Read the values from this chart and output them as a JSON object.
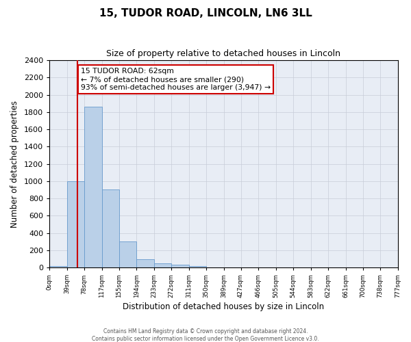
{
  "title_line1": "15, TUDOR ROAD, LINCOLN, LN6 3LL",
  "title_line2": "Size of property relative to detached houses in Lincoln",
  "xlabel": "Distribution of detached houses by size in Lincoln",
  "ylabel": "Number of detached properties",
  "bar_color": "#bad0e8",
  "bar_edge_color": "#6699cc",
  "bg_color": "#e8edf5",
  "grid_color": "#c8cdd8",
  "annotation_box_color": "#cc0000",
  "annotation_line1": "15 TUDOR ROAD: 62sqm",
  "annotation_line2": "← 7% of detached houses are smaller (290)",
  "annotation_line3": "93% of semi-detached houses are larger (3,947) →",
  "red_line_x": 62,
  "xlim_left": 0,
  "xlim_right": 777,
  "ylim_top": 2400,
  "ylim_bottom": 0,
  "bin_edges": [
    0,
    39,
    78,
    117,
    155,
    194,
    233,
    272,
    311,
    350,
    389,
    427,
    466,
    505,
    544,
    583,
    622,
    661,
    700,
    738,
    777
  ],
  "bar_heights": [
    20,
    1000,
    1860,
    900,
    300,
    100,
    45,
    30,
    20,
    0,
    0,
    0,
    0,
    0,
    0,
    0,
    0,
    0,
    0,
    0
  ],
  "tick_labels": [
    "0sqm",
    "39sqm",
    "78sqm",
    "117sqm",
    "155sqm",
    "194sqm",
    "233sqm",
    "272sqm",
    "311sqm",
    "350sqm",
    "389sqm",
    "427sqm",
    "466sqm",
    "505sqm",
    "544sqm",
    "583sqm",
    "622sqm",
    "661sqm",
    "700sqm",
    "738sqm",
    "777sqm"
  ],
  "yticks": [
    0,
    200,
    400,
    600,
    800,
    1000,
    1200,
    1400,
    1600,
    1800,
    2000,
    2200,
    2400
  ],
  "footer_line1": "Contains HM Land Registry data © Crown copyright and database right 2024.",
  "footer_line2": "Contains public sector information licensed under the Open Government Licence v3.0."
}
